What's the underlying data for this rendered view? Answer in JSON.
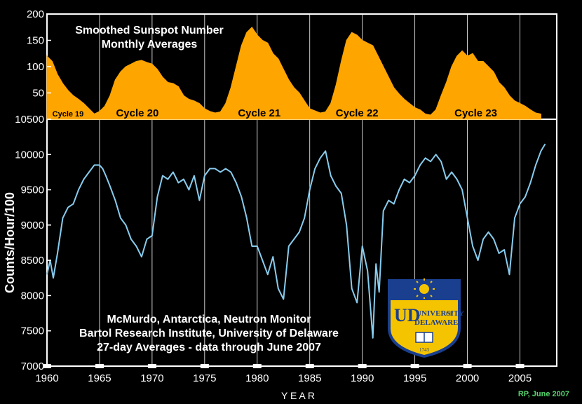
{
  "chart_data": [
    {
      "type": "area",
      "panel": "sunspots",
      "title": "Smoothed Sunspot Number",
      "subtitle": "Monthly Averages",
      "ylim": [
        0,
        200
      ],
      "yticks": [
        50,
        100,
        150,
        200
      ],
      "xlim": [
        1960,
        2008.5
      ],
      "color": "#FFA500",
      "x": [
        1960.0,
        1960.5,
        1961.0,
        1961.5,
        1962.0,
        1962.5,
        1963.0,
        1963.5,
        1964.0,
        1964.5,
        1965.0,
        1965.5,
        1966.0,
        1966.5,
        1967.0,
        1967.5,
        1968.0,
        1968.5,
        1969.0,
        1969.5,
        1970.0,
        1970.5,
        1971.0,
        1971.5,
        1972.0,
        1972.5,
        1973.0,
        1973.5,
        1974.0,
        1974.5,
        1975.0,
        1975.5,
        1976.0,
        1976.5,
        1977.0,
        1977.5,
        1978.0,
        1978.5,
        1979.0,
        1979.5,
        1980.0,
        1980.5,
        1981.0,
        1981.5,
        1982.0,
        1982.5,
        1983.0,
        1983.5,
        1984.0,
        1984.5,
        1985.0,
        1985.5,
        1986.0,
        1986.5,
        1987.0,
        1987.5,
        1988.0,
        1988.5,
        1989.0,
        1989.5,
        1990.0,
        1990.5,
        1991.0,
        1991.5,
        1992.0,
        1992.5,
        1993.0,
        1993.5,
        1994.0,
        1994.5,
        1995.0,
        1995.5,
        1996.0,
        1996.5,
        1997.0,
        1997.5,
        1998.0,
        1998.5,
        1999.0,
        1999.5,
        2000.0,
        2000.5,
        2001.0,
        2001.5,
        2002.0,
        2002.5,
        2003.0,
        2003.5,
        2004.0,
        2004.5,
        2005.0,
        2005.5,
        2006.0,
        2006.5,
        2007.0
      ],
      "y": [
        120,
        110,
        85,
        68,
        55,
        45,
        38,
        30,
        20,
        10,
        15,
        25,
        45,
        75,
        90,
        100,
        105,
        110,
        112,
        108,
        105,
        95,
        80,
        70,
        68,
        62,
        45,
        38,
        35,
        30,
        20,
        15,
        12,
        14,
        30,
        60,
        100,
        140,
        165,
        175,
        160,
        150,
        145,
        125,
        115,
        95,
        75,
        60,
        50,
        35,
        20,
        16,
        12,
        14,
        30,
        65,
        110,
        150,
        165,
        160,
        150,
        145,
        140,
        120,
        100,
        80,
        60,
        48,
        38,
        30,
        22,
        18,
        10,
        8,
        18,
        45,
        70,
        100,
        120,
        130,
        120,
        125,
        110,
        110,
        100,
        90,
        70,
        60,
        45,
        35,
        30,
        25,
        18,
        12,
        10
      ]
    },
    {
      "type": "line",
      "panel": "neutron-monitor",
      "ylabel": "Counts/Hour/100",
      "xlabel": "Y E A R",
      "ylim": [
        7000,
        10500
      ],
      "yticks": [
        7000,
        7500,
        8000,
        8500,
        9000,
        9500,
        10000,
        10500
      ],
      "xlim": [
        1960,
        2008.5
      ],
      "xticks": [
        1960,
        1965,
        1970,
        1975,
        1980,
        1985,
        1990,
        1995,
        2000,
        2005
      ],
      "color": "#88CCEE",
      "annotation": [
        "McMurdo, Antarctica, Neutron Monitor",
        "Bartol Research Institute, University of Delaware",
        "27-day Averages - data through June 2007"
      ],
      "x": [
        1960.0,
        1960.3,
        1960.6,
        1961.0,
        1961.5,
        1962.0,
        1962.5,
        1963.0,
        1963.5,
        1964.0,
        1964.5,
        1965.0,
        1965.3,
        1965.6,
        1966.0,
        1966.5,
        1967.0,
        1967.5,
        1968.0,
        1968.5,
        1969.0,
        1969.5,
        1970.0,
        1970.5,
        1971.0,
        1971.5,
        1972.0,
        1972.5,
        1973.0,
        1973.5,
        1974.0,
        1974.5,
        1975.0,
        1975.5,
        1976.0,
        1976.5,
        1977.0,
        1977.5,
        1978.0,
        1978.5,
        1979.0,
        1979.5,
        1980.0,
        1980.5,
        1981.0,
        1981.5,
        1982.0,
        1982.5,
        1983.0,
        1983.5,
        1984.0,
        1984.5,
        1985.0,
        1985.5,
        1986.0,
        1986.5,
        1987.0,
        1987.5,
        1988.0,
        1988.5,
        1989.0,
        1989.5,
        1990.0,
        1990.5,
        1991.0,
        1991.3,
        1991.6,
        1992.0,
        1992.5,
        1993.0,
        1993.5,
        1994.0,
        1994.5,
        1995.0,
        1995.5,
        1996.0,
        1996.5,
        1997.0,
        1997.5,
        1998.0,
        1998.5,
        1999.0,
        1999.5,
        2000.0,
        2000.5,
        2001.0,
        2001.5,
        2002.0,
        2002.5,
        2003.0,
        2003.5,
        2004.0,
        2004.5,
        2005.0,
        2005.5,
        2006.0,
        2006.5,
        2007.0,
        2007.4
      ],
      "y": [
        8300,
        8500,
        8250,
        8600,
        9100,
        9250,
        9300,
        9500,
        9650,
        9750,
        9850,
        9850,
        9800,
        9700,
        9550,
        9350,
        9100,
        9000,
        8800,
        8700,
        8550,
        8800,
        8850,
        9400,
        9700,
        9650,
        9750,
        9600,
        9650,
        9500,
        9700,
        9350,
        9700,
        9800,
        9800,
        9750,
        9800,
        9750,
        9600,
        9400,
        9100,
        8700,
        8700,
        8500,
        8300,
        8550,
        8100,
        7950,
        8700,
        8800,
        8900,
        9100,
        9500,
        9800,
        9950,
        10050,
        9700,
        9550,
        9450,
        9000,
        8100,
        7900,
        8700,
        8350,
        7400,
        8450,
        8050,
        9200,
        9350,
        9300,
        9500,
        9650,
        9600,
        9700,
        9850,
        9950,
        9900,
        10000,
        9900,
        9650,
        9750,
        9650,
        9500,
        9100,
        8700,
        8500,
        8800,
        8900,
        8800,
        8600,
        8650,
        8300,
        9100,
        9300,
        9400,
        9600,
        9850,
        10050,
        10150
      ]
    }
  ],
  "logo": {
    "name": "UNIVERSITY OF DELAWARE",
    "text_top": "UNIVERSITY",
    "text_of": "OF",
    "text_bottom": "DELAWARE",
    "monogram": "UD",
    "year": "1743"
  },
  "cycles": [
    {
      "label": "Cycle 19",
      "x": 1962.0,
      "size": 11
    },
    {
      "label": "Cycle 20",
      "x": 1968.6,
      "size": 15
    },
    {
      "label": "Cycle 21",
      "x": 1980.2,
      "size": 15
    },
    {
      "label": "Cycle 22",
      "x": 1989.5,
      "size": 15
    },
    {
      "label": "Cycle 23",
      "x": 2000.8,
      "size": 15
    }
  ],
  "credit": "RP, June 2007"
}
